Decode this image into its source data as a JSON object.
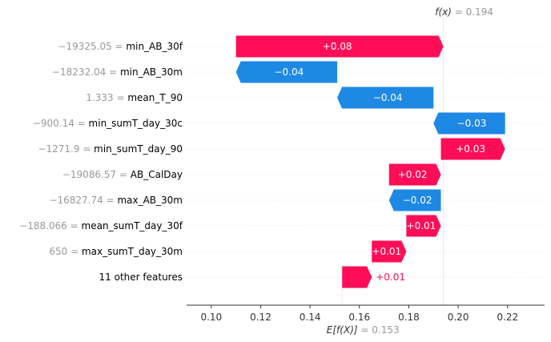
{
  "chart_data": {
    "type": "waterfall",
    "fx": {
      "label": "f(x)",
      "eq": " = ",
      "value": "0.194"
    },
    "base": {
      "label": "E[f(X)]",
      "eq": " = ",
      "value": "0.153"
    },
    "xlim": [
      0.09,
      0.235
    ],
    "xticks": [
      "0.10",
      "0.12",
      "0.14",
      "0.16",
      "0.18",
      "0.20",
      "0.22"
    ],
    "colors": {
      "positive": "#ff0d57",
      "negative": "#1e88e5",
      "text_muted": "#999999"
    },
    "rows": [
      {
        "value": "−19325.05",
        "feature": "min_AB_30f",
        "start": 0.11,
        "end": 0.194,
        "label": "+0.08"
      },
      {
        "value": "−18232.04",
        "feature": "min_AB_30m",
        "start": 0.151,
        "end": 0.11,
        "label": "−0.04"
      },
      {
        "value": "1.333",
        "feature": "mean_T_90",
        "start": 0.19,
        "end": 0.151,
        "label": "−0.04"
      },
      {
        "value": "−900.14",
        "feature": "min_sumT_day_30c",
        "start": 0.219,
        "end": 0.19,
        "label": "−0.03"
      },
      {
        "value": "−1271.9",
        "feature": "min_sumT_day_90",
        "start": 0.193,
        "end": 0.219,
        "label": "+0.03"
      },
      {
        "value": "−19086.57",
        "feature": "AB_CalDay",
        "start": 0.172,
        "end": 0.193,
        "label": "+0.02"
      },
      {
        "value": "−16827.74",
        "feature": "max_AB_30m",
        "start": 0.193,
        "end": 0.172,
        "label": "−0.02"
      },
      {
        "value": "−188.066",
        "feature": "mean_sumT_day_30f",
        "start": 0.179,
        "end": 0.193,
        "label": "+0.01"
      },
      {
        "value": "650",
        "feature": "max_sumT_day_30m",
        "start": 0.165,
        "end": 0.179,
        "label": "+0.01"
      },
      {
        "value": "",
        "feature": "11 other features",
        "start": 0.153,
        "end": 0.165,
        "label": "+0.01"
      }
    ]
  }
}
